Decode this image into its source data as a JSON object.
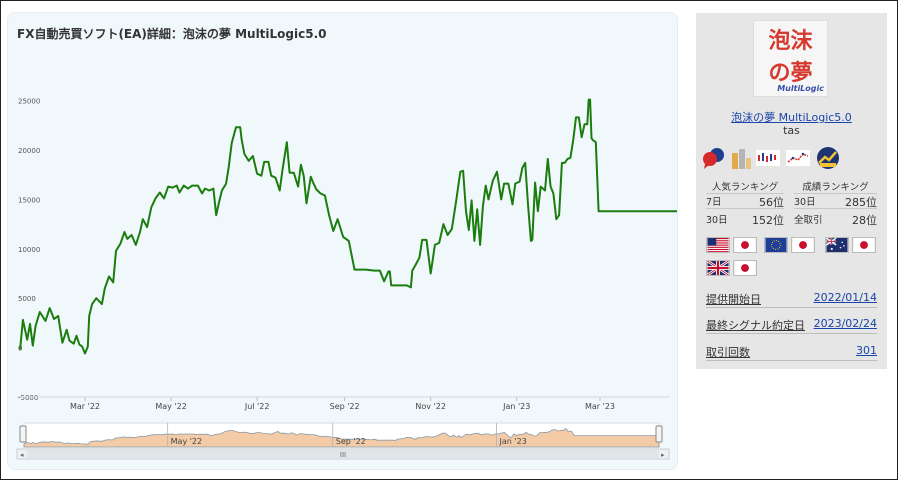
{
  "chart": {
    "title": "FX自動売買ソフト(EA)詳細：泡沫の夢 MultiLogic5.0"
  },
  "chart_data": {
    "type": "line",
    "ylim": [
      -5000,
      28000
    ],
    "y_ticks": [
      "25000",
      "20000",
      "15000",
      "10000",
      "5000",
      "0",
      "-5000"
    ],
    "x_ticks": [
      "Mar '22",
      "May '22",
      "Jul '22",
      "Sep '22",
      "Nov '22",
      "Jan '23",
      "Mar '23"
    ],
    "navigator_ticks": [
      "May '22",
      "Sep '22",
      "Jan '23"
    ],
    "navigator_scroll_mark": "III",
    "series": [
      {
        "color": "#1a7d0e",
        "points": [
          [
            "2022-01-14",
            -200
          ],
          [
            "2022-01-16",
            2800
          ],
          [
            "2022-01-19",
            800
          ],
          [
            "2022-01-21",
            2400
          ],
          [
            "2022-01-23",
            200
          ],
          [
            "2022-01-25",
            2200
          ],
          [
            "2022-01-28",
            3600
          ],
          [
            "2022-02-01",
            2700
          ],
          [
            "2022-02-04",
            4000
          ],
          [
            "2022-02-07",
            2900
          ],
          [
            "2022-02-10",
            3200
          ],
          [
            "2022-02-13",
            500
          ],
          [
            "2022-02-16",
            1800
          ],
          [
            "2022-02-18",
            700
          ],
          [
            "2022-02-21",
            400
          ],
          [
            "2022-02-23",
            1200
          ],
          [
            "2022-02-25",
            300
          ],
          [
            "2022-02-27",
            100
          ],
          [
            "2022-03-01",
            -600
          ],
          [
            "2022-03-03",
            100
          ],
          [
            "2022-03-04",
            3200
          ],
          [
            "2022-03-06",
            4400
          ],
          [
            "2022-03-09",
            5000
          ],
          [
            "2022-03-13",
            4400
          ],
          [
            "2022-03-15",
            6000
          ],
          [
            "2022-03-18",
            7200
          ],
          [
            "2022-03-21",
            6600
          ],
          [
            "2022-03-23",
            9800
          ],
          [
            "2022-03-26",
            10500
          ],
          [
            "2022-03-29",
            11700
          ],
          [
            "2022-03-31",
            11000
          ],
          [
            "2022-04-03",
            11400
          ],
          [
            "2022-04-06",
            10400
          ],
          [
            "2022-04-09",
            11700
          ],
          [
            "2022-04-11",
            13000
          ],
          [
            "2022-04-14",
            12200
          ],
          [
            "2022-04-17",
            14200
          ],
          [
            "2022-04-20",
            15100
          ],
          [
            "2022-04-23",
            15700
          ],
          [
            "2022-04-26",
            15100
          ],
          [
            "2022-04-29",
            16300
          ],
          [
            "2022-05-02",
            16200
          ],
          [
            "2022-05-05",
            16400
          ],
          [
            "2022-05-07",
            15700
          ],
          [
            "2022-05-10",
            16400
          ],
          [
            "2022-05-13",
            16100
          ],
          [
            "2022-05-16",
            16400
          ],
          [
            "2022-05-20",
            16400
          ],
          [
            "2022-05-23",
            15600
          ],
          [
            "2022-05-25",
            16100
          ],
          [
            "2022-05-28",
            15900
          ],
          [
            "2022-05-31",
            16100
          ],
          [
            "2022-06-02",
            13400
          ],
          [
            "2022-06-04",
            14700
          ],
          [
            "2022-06-06",
            15900
          ],
          [
            "2022-06-09",
            16600
          ],
          [
            "2022-06-11",
            18400
          ],
          [
            "2022-06-13",
            20700
          ],
          [
            "2022-06-16",
            22300
          ],
          [
            "2022-06-19",
            22300
          ],
          [
            "2022-06-20",
            21100
          ],
          [
            "2022-06-22",
            19600
          ],
          [
            "2022-06-25",
            18900
          ],
          [
            "2022-06-28",
            19400
          ],
          [
            "2022-07-01",
            17600
          ],
          [
            "2022-07-04",
            17400
          ],
          [
            "2022-07-06",
            18800
          ],
          [
            "2022-07-09",
            18800
          ],
          [
            "2022-07-11",
            17400
          ],
          [
            "2022-07-14",
            17200
          ],
          [
            "2022-07-17",
            15900
          ],
          [
            "2022-07-19",
            18000
          ],
          [
            "2022-07-22",
            20800
          ],
          [
            "2022-07-24",
            17700
          ],
          [
            "2022-07-27",
            17700
          ],
          [
            "2022-07-30",
            16300
          ],
          [
            "2022-08-01",
            18500
          ],
          [
            "2022-08-03",
            17400
          ],
          [
            "2022-08-05",
            14600
          ],
          [
            "2022-08-08",
            17300
          ],
          [
            "2022-08-10",
            16600
          ],
          [
            "2022-08-12",
            16000
          ],
          [
            "2022-08-15",
            15600
          ],
          [
            "2022-08-18",
            15400
          ],
          [
            "2022-08-21",
            13400
          ],
          [
            "2022-08-24",
            11800
          ],
          [
            "2022-08-27",
            13000
          ],
          [
            "2022-08-31",
            11200
          ],
          [
            "2022-09-04",
            10800
          ],
          [
            "2022-09-08",
            7900
          ],
          [
            "2022-09-16",
            7900
          ],
          [
            "2022-09-22",
            7800
          ],
          [
            "2022-09-26",
            7800
          ],
          [
            "2022-09-29",
            6700
          ],
          [
            "2022-10-02",
            7700
          ],
          [
            "2022-10-03",
            7700
          ],
          [
            "2022-10-04",
            6300
          ],
          [
            "2022-10-09",
            6300
          ],
          [
            "2022-10-15",
            6300
          ],
          [
            "2022-10-18",
            6100
          ],
          [
            "2022-10-19",
            7800
          ],
          [
            "2022-10-21",
            8300
          ],
          [
            "2022-10-24",
            9100
          ],
          [
            "2022-10-26",
            10900
          ],
          [
            "2022-10-29",
            10900
          ],
          [
            "2022-11-01",
            7500
          ],
          [
            "2022-11-04",
            10400
          ],
          [
            "2022-11-07",
            10600
          ],
          [
            "2022-11-10",
            12500
          ],
          [
            "2022-11-13",
            11400
          ],
          [
            "2022-11-16",
            12000
          ],
          [
            "2022-11-19",
            14800
          ],
          [
            "2022-11-22",
            17800
          ],
          [
            "2022-11-24",
            17900
          ],
          [
            "2022-11-26",
            13800
          ],
          [
            "2022-11-28",
            11900
          ],
          [
            "2022-11-30",
            14900
          ],
          [
            "2022-12-02",
            10800
          ],
          [
            "2022-12-04",
            14000
          ],
          [
            "2022-12-06",
            10400
          ],
          [
            "2022-12-08",
            14300
          ],
          [
            "2022-12-10",
            16400
          ],
          [
            "2022-12-12",
            15000
          ],
          [
            "2022-12-15",
            16900
          ],
          [
            "2022-12-18",
            17800
          ],
          [
            "2022-12-21",
            15000
          ],
          [
            "2022-12-23",
            16600
          ],
          [
            "2022-12-26",
            16600
          ],
          [
            "2022-12-29",
            14500
          ],
          [
            "2022-12-31",
            16600
          ],
          [
            "2023-01-03",
            16800
          ],
          [
            "2023-01-05",
            18200
          ],
          [
            "2023-01-07",
            18700
          ],
          [
            "2023-01-09",
            14500
          ],
          [
            "2023-01-11",
            10800
          ],
          [
            "2023-01-12",
            10900
          ],
          [
            "2023-01-14",
            16700
          ],
          [
            "2023-01-16",
            13800
          ],
          [
            "2023-01-18",
            16300
          ],
          [
            "2023-01-21",
            15900
          ],
          [
            "2023-01-23",
            19100
          ],
          [
            "2023-01-25",
            16300
          ],
          [
            "2023-01-27",
            15600
          ],
          [
            "2023-01-29",
            13000
          ],
          [
            "2023-01-31",
            13400
          ],
          [
            "2023-02-02",
            18700
          ],
          [
            "2023-02-04",
            18700
          ],
          [
            "2023-02-06",
            19100
          ],
          [
            "2023-02-08",
            19200
          ],
          [
            "2023-02-10",
            21000
          ],
          [
            "2023-02-12",
            23300
          ],
          [
            "2023-02-14",
            23300
          ],
          [
            "2023-02-16",
            21300
          ],
          [
            "2023-02-18",
            22600
          ],
          [
            "2023-02-20",
            22600
          ],
          [
            "2023-02-21",
            25100
          ],
          [
            "2023-02-22",
            25100
          ],
          [
            "2023-02-23",
            21200
          ],
          [
            "2023-02-24",
            21000
          ],
          [
            "2023-02-26",
            20800
          ],
          [
            "2023-02-28",
            13800
          ],
          [
            "2023-05-02",
            13800
          ]
        ]
      }
    ]
  },
  "sidebar": {
    "logo": {
      "line1": "泡沫",
      "line2": "の夢",
      "subtitle": "MultiLogic"
    },
    "ea_name": "泡沫の夢 MultiLogic5.0",
    "author": "tas",
    "icons": [
      "chat-bubbles-icon",
      "bar-figure-icon",
      "candlestick-chart-icon",
      "dotted-line-chart-icon",
      "trend-up-chart-icon"
    ],
    "popularity_ranking": {
      "title": "人気ランキング",
      "rows": [
        {
          "label": "7日",
          "value": "56位"
        },
        {
          "label": "30日",
          "value": "152位"
        }
      ]
    },
    "performance_ranking": {
      "title": "成績ランキング",
      "rows": [
        {
          "label": "30日",
          "value": "285位"
        },
        {
          "label": "全取引",
          "value": "28位"
        }
      ]
    },
    "currency_pairs": [
      [
        "USD",
        "JPY"
      ],
      [
        "EUR",
        "JPY"
      ],
      [
        "AUD",
        "JPY"
      ],
      [
        "GBP",
        "JPY"
      ]
    ],
    "info": [
      {
        "label": "提供開始日",
        "value": "2022/01/14"
      },
      {
        "label": "最終シグナル約定日",
        "value": "2023/02/24"
      },
      {
        "label": "取引回数",
        "value": "301"
      }
    ]
  }
}
